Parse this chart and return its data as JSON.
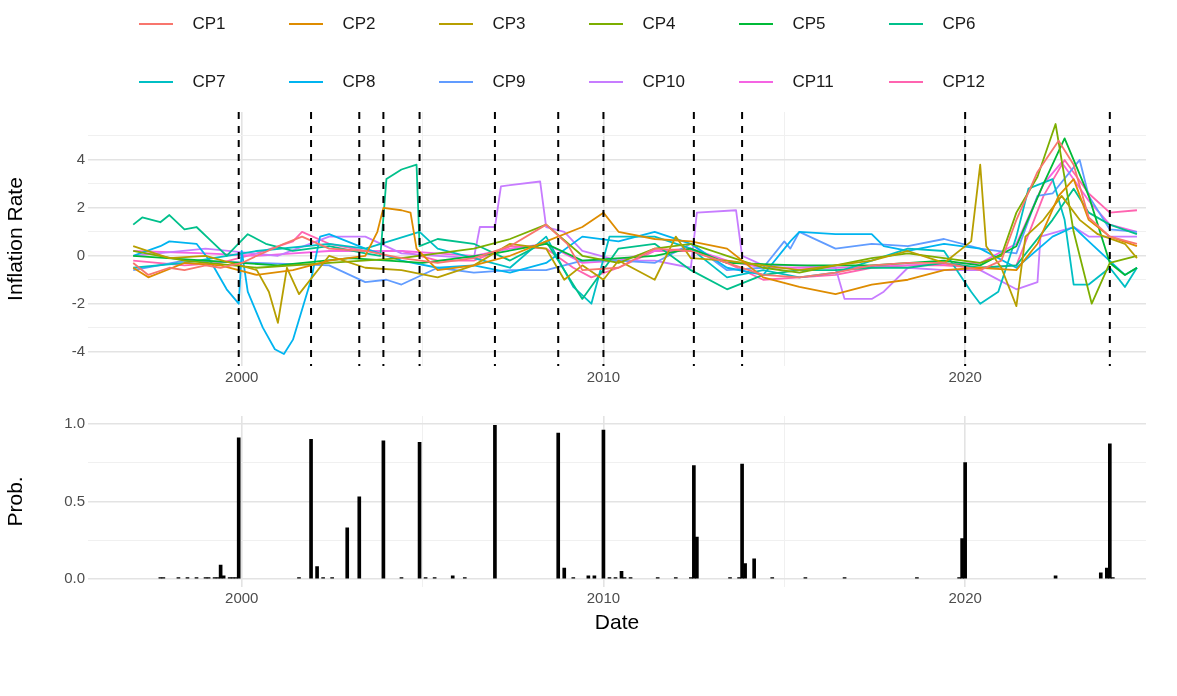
{
  "chart_data": [
    {
      "type": "line",
      "ylabel": "Inflation Rate",
      "legend": "top",
      "grid": true,
      "xlim": [
        "1995-10",
        "2025-01"
      ],
      "xticks": [
        "2000",
        {
          "value": "2005",
          "label": null
        },
        "2010",
        {
          "value": "2015",
          "label": null
        },
        "2020"
      ],
      "ylim": [
        -4.6,
        6.0
      ],
      "yticks": [
        -4,
        {
          "value": -3,
          "label": null
        },
        -2,
        {
          "value": -1,
          "label": null
        },
        0,
        {
          "value": 1,
          "label": null
        },
        2,
        {
          "value": 3,
          "label": null
        },
        4,
        {
          "value": 5,
          "label": null
        }
      ],
      "ref_lines": [
        {
          "axis": "x",
          "value": "1999-12",
          "color": "#000000",
          "line_style": "dashed"
        },
        {
          "axis": "x",
          "value": "2001-12",
          "color": "#000000",
          "line_style": "dashed"
        },
        {
          "axis": "x",
          "value": "2003-04",
          "color": "#000000",
          "line_style": "dashed"
        },
        {
          "axis": "x",
          "value": "2003-12",
          "color": "#000000",
          "line_style": "dashed"
        },
        {
          "axis": "x",
          "value": "2004-12",
          "color": "#000000",
          "line_style": "dashed"
        },
        {
          "axis": "x",
          "value": "2007-01",
          "color": "#000000",
          "line_style": "dashed"
        },
        {
          "axis": "x",
          "value": "2008-10",
          "color": "#000000",
          "line_style": "dashed"
        },
        {
          "axis": "x",
          "value": "2010-01",
          "color": "#000000",
          "line_style": "dashed"
        },
        {
          "axis": "x",
          "value": "2012-07",
          "color": "#000000",
          "line_style": "dashed"
        },
        {
          "axis": "x",
          "value": "2013-11",
          "color": "#000000",
          "line_style": "dashed"
        },
        {
          "axis": "x",
          "value": "2020-01",
          "color": "#000000",
          "line_style": "dashed"
        },
        {
          "axis": "x",
          "value": "2024-01",
          "color": "#000000",
          "line_style": "dashed"
        }
      ],
      "series": [
        {
          "name": "CP1",
          "color": "#f8766d",
          "x": [
            "1997-01",
            "1997-06",
            "1998-01",
            "1998-06",
            "1999-01",
            "1999-06",
            "2000-01",
            "2000-06",
            "2001-03",
            "2001-09",
            "2002-06",
            "2003-06",
            "2004-06",
            "2005-06",
            "2006-06",
            "2007-06",
            "2008-06",
            "2009-01",
            "2009-06",
            "2010-06",
            "2011-06",
            "2012-06",
            "2013-06",
            "2014-06",
            "2015-06",
            "2016-06",
            "2017-06",
            "2018-06",
            "2019-06",
            "2020-06",
            "2021-01",
            "2021-06",
            "2022-01",
            "2022-08",
            "2023-01",
            "2023-06",
            "2024-01",
            "2024-10"
          ],
          "values": [
            -0.3,
            -0.8,
            -0.5,
            -0.6,
            -0.4,
            -0.5,
            -0.3,
            0.0,
            0.5,
            0.8,
            0.3,
            0.2,
            -0.1,
            -0.3,
            -0.1,
            0.4,
            1.3,
            0.5,
            -0.6,
            -0.5,
            0.3,
            0.2,
            -0.3,
            -0.8,
            -0.9,
            -0.7,
            -0.4,
            -0.3,
            -0.3,
            -0.6,
            -0.2,
            1.5,
            3.5,
            4.8,
            3.8,
            1.6,
            0.8,
            0.5
          ]
        },
        {
          "name": "CP2",
          "color": "#de8c00",
          "x": [
            "1997-01",
            "1997-06",
            "1998-06",
            "1999-06",
            "2000-06",
            "2001-06",
            "2002-06",
            "2003-06",
            "2003-10",
            "2003-12",
            "2004-06",
            "2004-09",
            "2004-11",
            "2005-06",
            "2006-06",
            "2007-06",
            "2008-06",
            "2009-06",
            "2010-01",
            "2010-06",
            "2011-06",
            "2012-06",
            "2013-06",
            "2014-06",
            "2015-06",
            "2016-06",
            "2017-06",
            "2018-06",
            "2019-06",
            "2020-06",
            "2021-06",
            "2022-01",
            "2022-08",
            "2023-01",
            "2023-06",
            "2024-01",
            "2024-10"
          ],
          "values": [
            -0.5,
            -0.9,
            -0.3,
            -0.4,
            -0.8,
            -0.6,
            -0.2,
            0.0,
            1.0,
            2.0,
            1.9,
            1.8,
            0.3,
            -0.6,
            -0.4,
            0.0,
            0.6,
            1.2,
            1.8,
            1.0,
            0.7,
            0.6,
            0.3,
            -0.9,
            -1.3,
            -1.6,
            -1.2,
            -1.0,
            -0.6,
            -0.5,
            -0.6,
            0.5,
            2.5,
            3.2,
            1.5,
            0.8,
            0.4
          ]
        },
        {
          "name": "CP3",
          "color": "#b79f00",
          "x": [
            "1997-01",
            "1998-01",
            "1999-01",
            "2000-06",
            "2000-10",
            "2001-01",
            "2001-04",
            "2001-08",
            "2002-06",
            "2003-06",
            "2004-06",
            "2005-06",
            "2006-06",
            "2007-06",
            "2008-06",
            "2008-12",
            "2009-06",
            "2010-01",
            "2010-06",
            "2011-06",
            "2012-01",
            "2012-06",
            "2013-06",
            "2014-06",
            "2015-06",
            "2016-06",
            "2017-06",
            "2018-06",
            "2019-06",
            "2020-03",
            "2020-06",
            "2020-08",
            "2021-01",
            "2021-06",
            "2021-09",
            "2022-03",
            "2022-09",
            "2023-03",
            "2023-09",
            "2024-06",
            "2024-10"
          ],
          "values": [
            0.4,
            -0.1,
            0.0,
            -0.6,
            -1.5,
            -2.8,
            -0.5,
            -1.6,
            0.0,
            -0.5,
            -0.6,
            -0.9,
            -0.4,
            0.5,
            0.3,
            -1.0,
            -0.4,
            -1.0,
            -0.2,
            -1.0,
            0.8,
            -0.1,
            -0.2,
            -0.4,
            -0.6,
            -0.4,
            -0.2,
            0.2,
            -0.3,
            0.6,
            3.8,
            0.4,
            -0.5,
            -2.1,
            0.8,
            1.5,
            2.5,
            1.5,
            0.9,
            0.5,
            -0.1
          ]
        },
        {
          "name": "CP4",
          "color": "#7cae00",
          "x": [
            "1997-01",
            "1998-06",
            "2000-06",
            "2002-06",
            "2004-06",
            "2006-06",
            "2007-06",
            "2008-06",
            "2009-06",
            "2010-06",
            "2011-06",
            "2012-06",
            "2013-06",
            "2014-06",
            "2015-06",
            "2016-06",
            "2017-06",
            "2018-06",
            "2019-06",
            "2020-06",
            "2021-01",
            "2021-06",
            "2022-01",
            "2022-07",
            "2023-01",
            "2023-07",
            "2024-01",
            "2024-10"
          ],
          "values": [
            0.2,
            -0.2,
            -0.5,
            -0.3,
            -0.1,
            0.3,
            0.7,
            1.3,
            0.0,
            -0.3,
            0.3,
            0.5,
            0.0,
            -0.5,
            -0.7,
            -0.4,
            -0.1,
            0.1,
            -0.1,
            -0.3,
            0.0,
            1.8,
            3.3,
            5.5,
            1.0,
            -2.0,
            -0.3,
            0.0
          ]
        },
        {
          "name": "CP5",
          "color": "#00ba38",
          "x": [
            "1997-01",
            "1999-01",
            "2001-01",
            "2003-01",
            "2005-01",
            "2007-01",
            "2008-06",
            "2009-06",
            "2011-06",
            "2012-06",
            "2013-06",
            "2015-06",
            "2017-06",
            "2019-06",
            "2020-06",
            "2021-06",
            "2022-03",
            "2022-10",
            "2023-06",
            "2024-01",
            "2024-06",
            "2024-10"
          ],
          "values": [
            0.0,
            -0.2,
            -0.4,
            -0.1,
            -0.3,
            0.1,
            0.5,
            -0.2,
            0.0,
            0.3,
            -0.3,
            -0.4,
            -0.4,
            -0.2,
            -0.4,
            0.4,
            3.0,
            4.9,
            2.5,
            -0.3,
            -0.8,
            -0.5
          ]
        },
        {
          "name": "CP6",
          "color": "#00c08b",
          "x": [
            "1997-01",
            "1997-04",
            "1997-10",
            "1998-01",
            "1998-06",
            "1998-10",
            "1999-03",
            "1999-08",
            "2000-03",
            "2000-09",
            "2001-06",
            "2002-06",
            "2003-06",
            "2003-11",
            "2004-01",
            "2004-06",
            "2004-11",
            "2004-12",
            "2005-06",
            "2006-06",
            "2007-06",
            "2008-06",
            "2009-06",
            "2010-06",
            "2011-06",
            "2012-06",
            "2013-06",
            "2014-06",
            "2015-06",
            "2016-06",
            "2017-06",
            "2018-06",
            "2019-06",
            "2020-06",
            "2021-06",
            "2022-06",
            "2023-01",
            "2023-06",
            "2024-01",
            "2024-10"
          ],
          "values": [
            1.3,
            1.6,
            1.4,
            1.7,
            1.1,
            1.2,
            0.6,
            0.0,
            0.9,
            0.5,
            0.2,
            0.4,
            0.1,
            0.0,
            3.2,
            3.6,
            3.8,
            0.4,
            0.7,
            0.5,
            -0.2,
            0.6,
            -1.8,
            0.3,
            0.5,
            -0.6,
            -1.4,
            -0.8,
            -0.6,
            -0.6,
            -0.5,
            -0.5,
            -0.3,
            -0.5,
            -0.4,
            1.5,
            2.8,
            1.8,
            1.3,
            0.9
          ]
        },
        {
          "name": "CP7",
          "color": "#00bfc4",
          "x": [
            "1997-01",
            "1998-06",
            "2000-06",
            "2002-06",
            "2003-06",
            "2004-12",
            "2005-06",
            "2007-06",
            "2008-06",
            "2009-03",
            "2009-09",
            "2010-03",
            "2011-06",
            "2012-06",
            "2013-06",
            "2014-06",
            "2015-06",
            "2016-06",
            "2017-06",
            "2018-06",
            "2019-06",
            "2020-03",
            "2020-06",
            "2020-12",
            "2021-06",
            "2021-10",
            "2022-06",
            "2022-10",
            "2023-01",
            "2023-06",
            "2024-01",
            "2024-06",
            "2024-10"
          ],
          "values": [
            -0.5,
            -0.3,
            0.2,
            0.5,
            0.3,
            1.0,
            0.3,
            -0.5,
            0.8,
            -1.3,
            -2.0,
            0.8,
            0.8,
            0.3,
            -0.9,
            -0.6,
            -0.9,
            -0.7,
            -0.2,
            0.3,
            0.2,
            -1.5,
            -2.0,
            -1.5,
            0.8,
            2.8,
            3.2,
            1.5,
            -1.2,
            -1.2,
            -0.5,
            -1.3,
            -0.5
          ]
        },
        {
          "name": "CP8",
          "color": "#00b4f0",
          "x": [
            "1997-01",
            "1997-10",
            "1998-01",
            "1998-10",
            "1999-03",
            "1999-08",
            "1999-12",
            "2000-01",
            "2000-03",
            "2000-08",
            "2000-12",
            "2001-03",
            "2001-06",
            "2001-12",
            "2002-03",
            "2002-06",
            "2003-06",
            "2004-06",
            "2005-06",
            "2006-06",
            "2007-06",
            "2008-06",
            "2009-06",
            "2010-06",
            "2011-06",
            "2012-06",
            "2013-06",
            "2014-06",
            "2015-03",
            "2015-06",
            "2016-06",
            "2017-06",
            "2017-10",
            "2018-06",
            "2019-06",
            "2020-06",
            "2021-06",
            "2022-06",
            "2023-01",
            "2023-06",
            "2024-06",
            "2024-10"
          ],
          "values": [
            0.0,
            0.4,
            0.6,
            0.5,
            -0.3,
            -1.4,
            -2.0,
            0.2,
            -1.5,
            -3.0,
            -3.9,
            -4.1,
            -3.5,
            -1.0,
            0.8,
            0.9,
            0.3,
            -0.2,
            -0.5,
            -0.4,
            -0.7,
            -0.3,
            0.8,
            0.6,
            1.0,
            0.5,
            -0.5,
            -0.8,
            0.6,
            1.0,
            0.9,
            0.9,
            0.4,
            0.2,
            0.5,
            0.3,
            -0.5,
            0.8,
            1.2,
            0.6,
            -0.8,
            -0.5
          ]
        },
        {
          "name": "CP9",
          "color": "#619cff",
          "x": [
            "1997-01",
            "1998-06",
            "2000-06",
            "2002-06",
            "2003-06",
            "2004-01",
            "2004-06",
            "2005-06",
            "2006-06",
            "2007-06",
            "2008-06",
            "2009-06",
            "2010-06",
            "2011-06",
            "2012-06",
            "2013-06",
            "2014-06",
            "2015-01",
            "2015-03",
            "2015-06",
            "2016-06",
            "2017-06",
            "2018-06",
            "2019-06",
            "2020-06",
            "2021-06",
            "2022-01",
            "2022-06",
            "2023-03",
            "2023-06",
            "2024-01",
            "2024-10"
          ],
          "values": [
            -0.6,
            -0.2,
            -0.3,
            -0.4,
            -1.1,
            -1.0,
            -1.2,
            -0.5,
            -0.7,
            -0.6,
            -0.6,
            -0.2,
            -0.2,
            -0.3,
            0.5,
            -0.6,
            -0.5,
            0.6,
            0.3,
            1.0,
            0.3,
            0.5,
            0.4,
            0.7,
            0.3,
            0.1,
            2.5,
            2.6,
            4.0,
            2.5,
            1.1,
            1.0
          ]
        },
        {
          "name": "CP10",
          "color": "#c77cff",
          "x": [
            "1997-01",
            "1999-01",
            "2001-01",
            "2002-06",
            "2003-06",
            "2004-06",
            "2005-06",
            "2006-06",
            "2006-08",
            "2007-01",
            "2007-03",
            "2008-04",
            "2008-06",
            "2008-12",
            "2009-06",
            "2010-06",
            "2011-06",
            "2012-06",
            "2012-08",
            "2013-09",
            "2013-11",
            "2014-06",
            "2015-06",
            "2016-06",
            "2016-09",
            "2017-06",
            "2017-10",
            "2018-06",
            "2019-06",
            "2020-06",
            "2021-06",
            "2022-01",
            "2022-02",
            "2023-01",
            "2023-06",
            "2024-10"
          ],
          "values": [
            0.0,
            0.3,
            0.0,
            0.8,
            0.8,
            0.1,
            0.0,
            -0.1,
            1.2,
            1.2,
            2.9,
            3.1,
            1.2,
            1.0,
            0.2,
            -0.2,
            -0.2,
            -0.5,
            1.8,
            1.9,
            0.0,
            -0.4,
            -0.4,
            -0.5,
            -1.8,
            -1.8,
            -1.5,
            -0.5,
            -0.6,
            -0.6,
            -1.4,
            -1.1,
            0.8,
            1.2,
            0.8,
            0.8
          ]
        },
        {
          "name": "CP11",
          "color": "#f564e3",
          "x": [
            "1997-01",
            "1999-01",
            "2000-06",
            "2002-06",
            "2004-06",
            "2006-06",
            "2007-06",
            "2008-06",
            "2009-06",
            "2010-06",
            "2011-06",
            "2012-06",
            "2013-06",
            "2014-06",
            "2016-06",
            "2018-06",
            "2020-06",
            "2021-06",
            "2022-03",
            "2022-09",
            "2023-06",
            "2024-01",
            "2024-10"
          ],
          "values": [
            0.2,
            0.1,
            0.0,
            0.2,
            0.2,
            0.0,
            0.3,
            0.5,
            -0.3,
            -0.2,
            0.2,
            0.3,
            -0.2,
            -0.5,
            -0.5,
            -0.4,
            -0.3,
            0.5,
            3.0,
            3.9,
            2.3,
            1.3,
            1.0
          ]
        },
        {
          "name": "CP12",
          "color": "#ff64b0",
          "x": [
            "1997-01",
            "1998-06",
            "1999-06",
            "2000-06",
            "2001-06",
            "2001-09",
            "2002-06",
            "2003-06",
            "2004-06",
            "2005-06",
            "2006-06",
            "2007-06",
            "2008-06",
            "2009-03",
            "2009-09",
            "2010-06",
            "2011-06",
            "2012-06",
            "2013-06",
            "2014-06",
            "2015-06",
            "2016-06",
            "2017-06",
            "2018-06",
            "2019-06",
            "2020-06",
            "2021-06",
            "2022-03",
            "2022-10",
            "2023-06",
            "2024-01",
            "2024-10"
          ],
          "values": [
            -0.2,
            -0.4,
            -0.3,
            0.1,
            0.6,
            1.0,
            0.5,
            0.2,
            0.2,
            -0.2,
            -0.2,
            0.4,
            0.3,
            -0.5,
            -0.9,
            -0.5,
            0.2,
            0.2,
            -0.3,
            -1.0,
            -0.9,
            -0.8,
            -0.5,
            -0.4,
            -0.4,
            -0.5,
            -0.4,
            2.5,
            4.0,
            2.6,
            1.8,
            1.9
          ]
        }
      ]
    },
    {
      "type": "bar",
      "xlabel": "Date",
      "ylabel": "Prob.",
      "grid": true,
      "color": "#000000",
      "xlim": [
        "1995-10",
        "2025-01"
      ],
      "xticks": [
        "2000",
        {
          "value": "2005",
          "label": null
        },
        "2010",
        {
          "value": "2015",
          "label": null
        },
        "2020"
      ],
      "ylim": [
        -0.05,
        1.05
      ],
      "yticks": [
        {
          "value": 0,
          "label": "0.0"
        },
        {
          "value": 0.25,
          "label": null
        },
        0.5,
        {
          "value": 0.75,
          "label": null
        },
        {
          "value": 1,
          "label": "1.0"
        }
      ],
      "x": [
        "1997-10",
        "1997-11",
        "1998-04",
        "1998-07",
        "1998-10",
        "1999-01",
        "1999-02",
        "1999-04",
        "1999-05",
        "1999-06",
        "1999-07",
        "1999-09",
        "1999-10",
        "1999-11",
        "1999-12",
        "2001-08",
        "2001-12",
        "2002-02",
        "2002-04",
        "2002-07",
        "2002-12",
        "2003-04",
        "2003-12",
        "2004-06",
        "2004-12",
        "2005-02",
        "2005-05",
        "2005-11",
        "2006-03",
        "2007-01",
        "2008-10",
        "2008-12",
        "2009-03",
        "2009-08",
        "2009-10",
        "2010-01",
        "2010-03",
        "2010-05",
        "2010-07",
        "2010-08",
        "2010-10",
        "2011-07",
        "2012-01",
        "2012-06",
        "2012-07",
        "2012-08",
        "2013-07",
        "2013-10",
        "2013-11",
        "2013-12",
        "2014-03",
        "2014-09",
        "2015-08",
        "2016-09",
        "2018-09",
        "2019-11",
        "2019-12",
        "2020-01",
        "2022-07",
        "2023-10",
        "2023-12",
        "2024-01",
        "2024-02"
      ],
      "values": [
        0.01,
        0.01,
        0.01,
        0.01,
        0.01,
        0.01,
        0.01,
        0.01,
        0.01,
        0.09,
        0.02,
        0.01,
        0.01,
        0.01,
        0.91,
        0.01,
        0.9,
        0.08,
        0.01,
        0.01,
        0.33,
        0.53,
        0.89,
        0.01,
        0.88,
        0.01,
        0.01,
        0.02,
        0.01,
        0.99,
        0.94,
        0.07,
        0.01,
        0.02,
        0.02,
        0.96,
        0.01,
        0.01,
        0.05,
        0.01,
        0.01,
        0.01,
        0.01,
        0.01,
        0.73,
        0.27,
        0.01,
        0.01,
        0.74,
        0.1,
        0.13,
        0.01,
        0.01,
        0.01,
        0.01,
        0.01,
        0.26,
        0.75,
        0.02,
        0.04,
        0.07,
        0.87,
        0.01
      ]
    }
  ]
}
